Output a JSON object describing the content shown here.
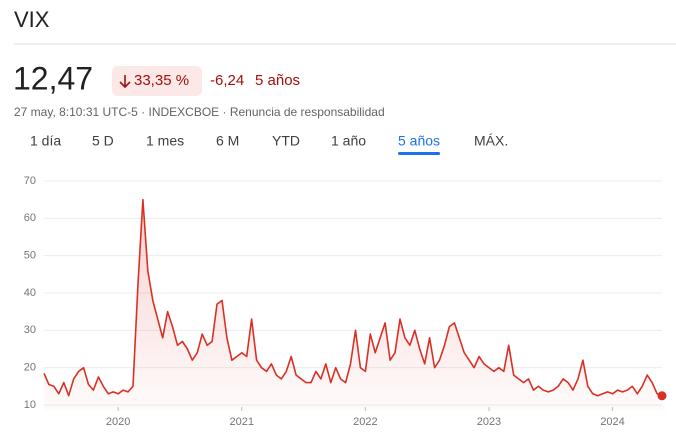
{
  "header": {
    "title": "VIX",
    "price": "12,47",
    "change_pct": "33,35 %",
    "change": "-6,24",
    "period": "5 años",
    "subtitle": "27 may, 8:10:31 UTC-5 · INDEXCBOE · Renuncia de responsabilidad"
  },
  "tabs": {
    "items": [
      "1 día",
      "5 D",
      "1 mes",
      "6 M",
      "YTD",
      "1 año",
      "5 años",
      "MÁX."
    ],
    "selected": 6
  },
  "chart_data": {
    "type": "line",
    "x": [
      2019.4,
      2019.44,
      2019.48,
      2019.52,
      2019.56,
      2019.6,
      2019.64,
      2019.68,
      2019.72,
      2019.76,
      2019.8,
      2019.84,
      2019.88,
      2019.92,
      2019.96,
      2020.0,
      2020.04,
      2020.08,
      2020.12,
      2020.16,
      2020.2,
      2020.24,
      2020.28,
      2020.32,
      2020.36,
      2020.4,
      2020.44,
      2020.48,
      2020.52,
      2020.56,
      2020.6,
      2020.64,
      2020.68,
      2020.72,
      2020.76,
      2020.8,
      2020.84,
      2020.88,
      2020.92,
      2020.96,
      2021.0,
      2021.04,
      2021.08,
      2021.12,
      2021.16,
      2021.2,
      2021.24,
      2021.28,
      2021.32,
      2021.36,
      2021.4,
      2021.44,
      2021.48,
      2021.52,
      2021.56,
      2021.6,
      2021.64,
      2021.68,
      2021.72,
      2021.76,
      2021.8,
      2021.84,
      2021.88,
      2021.92,
      2021.96,
      2022.0,
      2022.04,
      2022.08,
      2022.12,
      2022.16,
      2022.2,
      2022.24,
      2022.28,
      2022.32,
      2022.36,
      2022.4,
      2022.44,
      2022.48,
      2022.52,
      2022.56,
      2022.6,
      2022.64,
      2022.68,
      2022.72,
      2022.76,
      2022.8,
      2022.84,
      2022.88,
      2022.92,
      2022.96,
      2023.0,
      2023.04,
      2023.08,
      2023.12,
      2023.16,
      2023.2,
      2023.24,
      2023.28,
      2023.32,
      2023.36,
      2023.4,
      2023.44,
      2023.48,
      2023.52,
      2023.56,
      2023.6,
      2023.64,
      2023.68,
      2023.72,
      2023.76,
      2023.8,
      2023.84,
      2023.88,
      2023.92,
      2023.96,
      2024.0,
      2024.04,
      2024.08,
      2024.12,
      2024.16,
      2024.2,
      2024.24,
      2024.28,
      2024.32,
      2024.36,
      2024.4
    ],
    "series": [
      {
        "name": "VIX",
        "color": "#d93025",
        "values": [
          18.5,
          15.5,
          15,
          13,
          16,
          12.5,
          17,
          19,
          20,
          15.5,
          14,
          17.5,
          15,
          13,
          13.5,
          13,
          14,
          13.5,
          15,
          42,
          65,
          46,
          38,
          33,
          28,
          35,
          31,
          26,
          27,
          25,
          22,
          24,
          29,
          26,
          27,
          37,
          38,
          28,
          22,
          23,
          24,
          23,
          33,
          22,
          20,
          19,
          21,
          18,
          17,
          19,
          23,
          18,
          17,
          16,
          16,
          19,
          17,
          21,
          16,
          20,
          17,
          16,
          21,
          30,
          20,
          19,
          29,
          24,
          28,
          32,
          22,
          24,
          33,
          28,
          26,
          30,
          25,
          21,
          28,
          20,
          22,
          26,
          31,
          32,
          28,
          24,
          22,
          20,
          23,
          21,
          20,
          19,
          20,
          19,
          26,
          18,
          17,
          16,
          17,
          14,
          15,
          14,
          13.5,
          14,
          15,
          17,
          16,
          14,
          17,
          22,
          15,
          13,
          12.5,
          13,
          13.5,
          13,
          14,
          13.5,
          14,
          15,
          13,
          15,
          18,
          16,
          13,
          12.47
        ]
      }
    ],
    "xlim": [
      2019.4,
      2024.4
    ],
    "xticks": [
      2020,
      2021,
      2022,
      2023,
      2024
    ],
    "ylim": [
      10,
      70
    ],
    "yticks": [
      10,
      20,
      30,
      40,
      50,
      60,
      70
    ],
    "grid": true
  }
}
